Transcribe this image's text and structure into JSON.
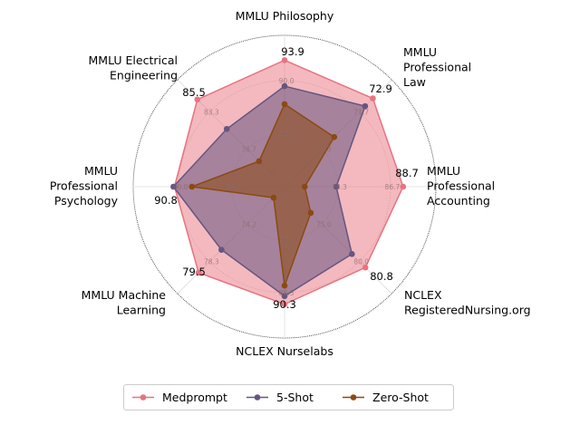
{
  "chart_data": {
    "type": "radar",
    "axes": [
      {
        "label": [
          "MMLU Philosophy"
        ],
        "ticks": [
          "80.0",
          "90.0"
        ],
        "range": [
          70.0,
          98.6
        ]
      },
      {
        "label": [
          "MMLU",
          "Professional",
          "Law"
        ],
        "ticks": [
          "68.3",
          "71.7"
        ],
        "range": [
          64.9,
          74.6
        ]
      },
      {
        "label": [
          "MMLU",
          "Professional",
          "Accounting"
        ],
        "ticks": [
          "78.3",
          "86.7"
        ],
        "range": [
          69.9,
          93.9
        ]
      },
      {
        "label": [
          "NCLEX",
          "RegisteredNursing.org"
        ],
        "ticks": [
          "75.0",
          "80.0"
        ],
        "range": [
          70.0,
          84.3
        ]
      },
      {
        "label": [
          "NCLEX Nurselabs"
        ],
        "ticks": [
          "79.2",
          "88.3"
        ],
        "range": [
          70.1,
          96.1
        ]
      },
      {
        "label": [
          "MMLU Machine",
          "Learning"
        ],
        "ticks": [
          "74.2",
          "78.3"
        ],
        "range": [
          70.1,
          81.8
        ]
      },
      {
        "label": [
          "MMLU",
          "Professional",
          "Psychology"
        ],
        "ticks": [
          "80.0",
          "90.0"
        ],
        "range": [
          70.0,
          98.6
        ]
      },
      {
        "label": [
          "MMLU Electrical",
          "Engineering"
        ],
        "ticks": [
          "76.7",
          "83.3"
        ],
        "range": [
          70.1,
          89.0
        ]
      }
    ],
    "series": [
      {
        "name": "Medprompt",
        "color": "#e8737f",
        "values": [
          93.9,
          72.9,
          88.7,
          80.8,
          90.3,
          79.5,
          90.8,
          85.5
        ],
        "labels": [
          "93.9",
          "72.9",
          "88.7",
          "80.8",
          "90.3",
          "79.5",
          "90.8",
          "85.5"
        ]
      },
      {
        "name": "5-Shot",
        "color": "#66557f",
        "values": [
          89.0,
          72.2,
          78.1,
          79.0,
          88.9,
          77.0,
          91.0,
          80.3
        ]
      },
      {
        "name": "Zero-Shot",
        "color": "#8b4a12",
        "values": [
          85.6,
          69.4,
          73.1,
          73.5,
          87.1,
          71.3,
          87.5,
          74.6
        ]
      }
    ],
    "legend": "bottom-center",
    "grid": true
  }
}
